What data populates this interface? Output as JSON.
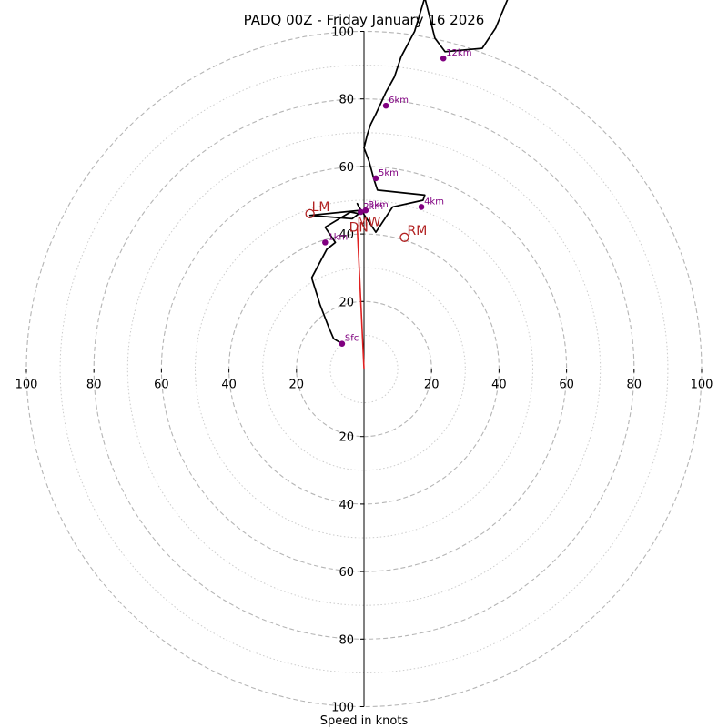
{
  "chart_data": {
    "type": "line",
    "title": "PADQ 00Z - Friday January 16 2026",
    "xlabel": "Speed in knots",
    "ylabel": "",
    "xlim": [
      -100,
      100
    ],
    "ylim": [
      -100,
      100
    ],
    "rings": {
      "dashed": [
        20,
        40,
        60,
        80,
        100
      ],
      "dotted": [
        10,
        30,
        50,
        70,
        90
      ]
    },
    "x_ticks": [
      {
        "value": -100,
        "label": "100"
      },
      {
        "value": -80,
        "label": "80"
      },
      {
        "value": -60,
        "label": "60"
      },
      {
        "value": -40,
        "label": "40"
      },
      {
        "value": -20,
        "label": "20"
      },
      {
        "value": 20,
        "label": "20"
      },
      {
        "value": 40,
        "label": "40"
      },
      {
        "value": 60,
        "label": "60"
      },
      {
        "value": 80,
        "label": "80"
      },
      {
        "value": 100,
        "label": "100"
      }
    ],
    "y_ticks": [
      {
        "value": 100,
        "label": "100"
      },
      {
        "value": 80,
        "label": "80"
      },
      {
        "value": 60,
        "label": "60"
      },
      {
        "value": 40,
        "label": "40"
      },
      {
        "value": 20,
        "label": "20"
      },
      {
        "value": -20,
        "label": "20"
      },
      {
        "value": -40,
        "label": "40"
      },
      {
        "value": -60,
        "label": "60"
      },
      {
        "value": -80,
        "label": "80"
      },
      {
        "value": -100,
        "label": "100"
      }
    ],
    "hodograph": {
      "color": "#000000",
      "u": [
        -6.5,
        -9,
        -10.5,
        -13,
        -15.5,
        -11,
        -8.5,
        -11.5,
        -4,
        -1.5,
        -3.5,
        -16,
        -1,
        -2,
        -1.5,
        3.5,
        8.5,
        17.5,
        18,
        4,
        3,
        1.5,
        0,
        1,
        2,
        3.5,
        6.5,
        9,
        11,
        15,
        18,
        19,
        21,
        24,
        35,
        39,
        44
      ],
      "v": [
        7.5,
        9,
        12.5,
        19,
        27,
        35.5,
        37.5,
        42,
        46.5,
        46,
        44.5,
        45.5,
        47,
        49,
        48,
        40.5,
        48,
        50,
        51.5,
        53,
        56,
        61.5,
        65.5,
        69.5,
        72.5,
        75.5,
        82,
        86.5,
        92.5,
        100,
        110,
        106,
        98,
        94,
        95,
        101,
        113
      ]
    },
    "height_markers": {
      "color": "#800080",
      "points": [
        {
          "label": "Sfc",
          "u": -6.5,
          "v": 7.5
        },
        {
          "label": "1km",
          "u": -11.5,
          "v": 37.5
        },
        {
          "label": "2km",
          "u": -1.0,
          "v": 46.5
        },
        {
          "label": "3km",
          "u": 0.5,
          "v": 47.0
        },
        {
          "label": "4km",
          "u": 17,
          "v": 48
        },
        {
          "label": "5km",
          "u": 3.5,
          "v": 56.5
        },
        {
          "label": "6km",
          "u": 6.5,
          "v": 78
        },
        {
          "label": "12km",
          "u": 23.5,
          "v": 92
        }
      ]
    },
    "storm_motion": {
      "color": "#b22222",
      "points": [
        {
          "label": "LM",
          "u": -16,
          "v": 46
        },
        {
          "label": "RM",
          "u": 12,
          "v": 39
        },
        {
          "label": "DN",
          "u": -2,
          "v": 42
        },
        {
          "label": "MW",
          "u": -1.5,
          "v": 44.5
        }
      ],
      "vector": {
        "from": [
          0,
          0
        ],
        "to": [
          -2,
          42
        ]
      }
    }
  }
}
